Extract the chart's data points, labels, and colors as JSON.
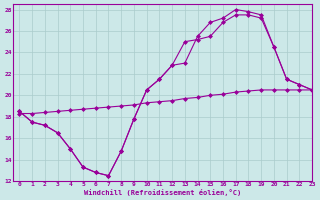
{
  "title": "",
  "xlabel": "Windchill (Refroidissement éolien,°C)",
  "ylabel": "",
  "background_color": "#cce8e8",
  "grid_color": "#aacccc",
  "line_color": "#990099",
  "xlim": [
    -0.5,
    23
  ],
  "ylim": [
    12,
    28.5
  ],
  "xticks": [
    0,
    1,
    2,
    3,
    4,
    5,
    6,
    7,
    8,
    9,
    10,
    11,
    12,
    13,
    14,
    15,
    16,
    17,
    18,
    19,
    20,
    21,
    22,
    23
  ],
  "yticks": [
    12,
    14,
    16,
    18,
    20,
    22,
    24,
    26,
    28
  ],
  "line1_x": [
    0,
    1,
    2,
    3,
    4,
    5,
    6,
    7,
    8,
    9,
    10,
    11,
    12,
    13,
    14,
    15,
    16,
    17,
    18,
    19,
    20,
    21,
    22,
    23
  ],
  "line1_y": [
    18.5,
    17.5,
    17.2,
    16.5,
    15.0,
    13.3,
    12.8,
    12.5,
    14.8,
    17.8,
    20.5,
    21.5,
    22.8,
    25.0,
    25.2,
    25.5,
    26.8,
    27.5,
    27.5,
    27.2,
    24.5,
    21.5,
    21.0,
    20.5
  ],
  "line2_x": [
    0,
    1,
    2,
    3,
    4,
    5,
    6,
    7,
    8,
    9,
    10,
    11,
    12,
    13,
    14,
    15,
    16,
    17,
    18,
    19,
    20,
    21,
    22,
    23
  ],
  "line2_y": [
    18.3,
    18.3,
    18.4,
    18.5,
    18.6,
    18.7,
    18.8,
    18.9,
    19.0,
    19.1,
    19.3,
    19.4,
    19.5,
    19.7,
    19.8,
    20.0,
    20.1,
    20.3,
    20.4,
    20.5,
    20.5,
    20.5,
    20.5,
    20.5
  ],
  "line3_x": [
    0,
    1,
    2,
    3,
    4,
    5,
    6,
    7,
    8,
    9,
    10,
    11,
    12,
    13,
    14,
    15,
    16,
    17,
    18,
    19,
    20,
    21,
    22,
    23
  ],
  "line3_y": [
    18.5,
    17.5,
    17.2,
    16.5,
    15.0,
    13.3,
    12.8,
    12.5,
    14.8,
    17.8,
    20.5,
    21.5,
    22.8,
    23.0,
    25.5,
    26.8,
    27.2,
    28.0,
    27.8,
    27.5,
    24.5,
    21.5,
    21.0,
    20.5
  ]
}
